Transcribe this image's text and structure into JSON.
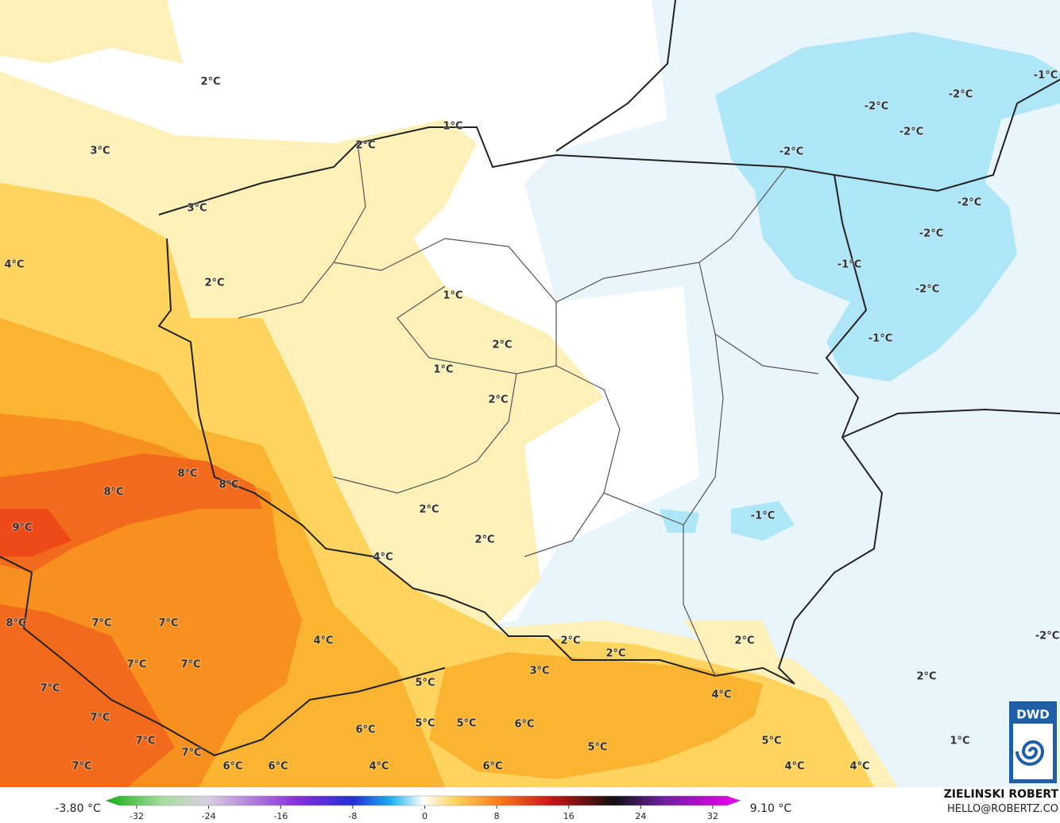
{
  "map": {
    "labels": [
      "2°C",
      "1°C",
      "2°C",
      "3°C",
      "3°C",
      "4°C",
      "2°C",
      "1°C",
      "2°C",
      "1°C",
      "2°C",
      "8°C",
      "8°C",
      "8°C",
      "2°C",
      "9°C",
      "2°C",
      "4°C",
      "7°C",
      "7°C",
      "8°C",
      "4°C",
      "2°C",
      "2°C",
      "2°C",
      "7°C",
      "7°C",
      "3°C",
      "5°C",
      "7°C",
      "4°C",
      "7°C",
      "5°C",
      "5°C",
      "6°C",
      "6°C",
      "7°C",
      "5°C",
      "1°C",
      "5°C",
      "7°C",
      "7°C",
      "6°C",
      "6°C",
      "4°C",
      "6°C",
      "4°C",
      "4°C",
      "-2°C",
      "-2°C",
      "-2°C",
      "-1°C",
      "-2°C",
      "-2°C",
      "-2°C",
      "-1°C",
      "-2°C",
      "-1°C",
      "-1°C",
      "-2°C",
      "2°C"
    ]
  },
  "colorbar": {
    "min_label": "-3.80 °C",
    "max_label": "9.10 °C",
    "ticks": [
      -32,
      -24,
      -16,
      -8,
      0,
      8,
      16,
      24,
      32
    ]
  },
  "credits": {
    "author": "ZIELINSKI ROBERT",
    "email": "HELLO@ROBERTZ.CO",
    "logo": "DWD"
  }
}
